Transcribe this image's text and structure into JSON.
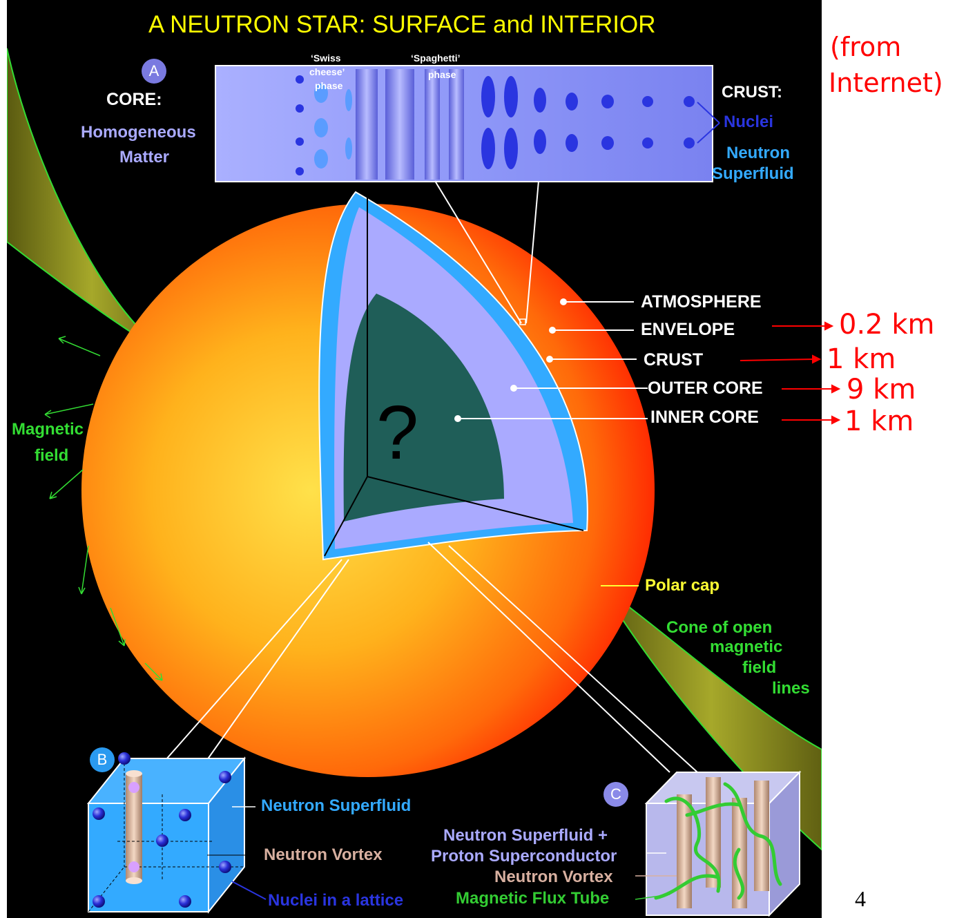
{
  "title": "A NEUTRON STAR:  SURFACE and INTERIOR",
  "source_note_line1": "(from",
  "source_note_line2": "Internet)",
  "page_number": "4",
  "inset_a": {
    "badge": "A",
    "core_heading": "CORE:",
    "core_desc_line1": "Homogeneous",
    "core_desc_line2": "Matter",
    "swiss_line1": "‘Swiss",
    "swiss_line2": "cheese’",
    "swiss_line3": "phase",
    "spaghetti_line1": "‘Spaghetti’",
    "spaghetti_line2": "phase",
    "crust_heading": "CRUST:",
    "nuclei": "Nuclei",
    "superfluid_line1": "Neutron",
    "superfluid_line2": "Superfluid"
  },
  "layers": [
    {
      "name": "ATMOSPHERE",
      "thickness": ""
    },
    {
      "name": "ENVELOPE",
      "thickness": "0.2 km"
    },
    {
      "name": "CRUST",
      "thickness": "1 km"
    },
    {
      "name": "OUTER CORE",
      "thickness": "9 km"
    },
    {
      "name": "INNER CORE",
      "thickness": "1 km"
    }
  ],
  "unknown_mark": "?",
  "magnetic_field_line1": "Magnetic",
  "magnetic_field_line2": "field",
  "polar_cap": "Polar cap",
  "cone_line1": "Cone of open",
  "cone_line2": "magnetic",
  "cone_line3": "field",
  "cone_line4": "lines",
  "inset_b": {
    "badge": "B",
    "neutron_superfluid": "Neutron Superfluid",
    "neutron_vortex": "Neutron Vortex",
    "nuclei_lattice": "Nuclei in a lattice"
  },
  "inset_c": {
    "badge": "C",
    "line1": "Neutron Superfluid  +",
    "line2": "Proton Superconductor",
    "line3": "Neutron Vortex",
    "line4": "Magnetic Flux Tube"
  },
  "colors": {
    "background": "#000000",
    "title": "#ffff00",
    "annotation_red": "#ff0000",
    "crust_blue": "#33aaff",
    "outer_core_lavender": "#aaaaff",
    "inner_core_teal": "#1f5e58",
    "magnetic_green": "#33dd33",
    "polar_yellow": "#ffff33"
  }
}
